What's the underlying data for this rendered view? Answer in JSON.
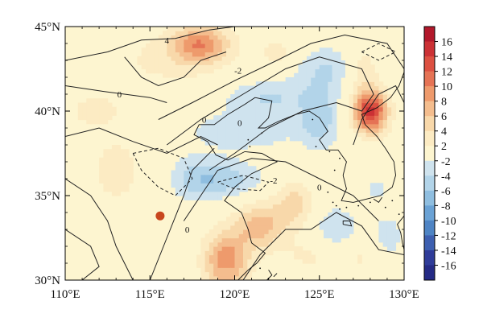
{
  "map": {
    "lon_range": [
      110,
      130
    ],
    "lat_range": [
      30,
      45
    ],
    "x_ticks": [
      {
        "value": 110,
        "label": "110°E"
      },
      {
        "value": 115,
        "label": "115°E"
      },
      {
        "value": 120,
        "label": "120°E"
      },
      {
        "value": 125,
        "label": "125°E"
      },
      {
        "value": 130,
        "label": "130°E"
      }
    ],
    "y_ticks": [
      {
        "value": 30,
        "label": "30°N"
      },
      {
        "value": 35,
        "label": "35°N"
      },
      {
        "value": 40,
        "label": "40°N"
      },
      {
        "value": 45,
        "label": "45°N"
      }
    ],
    "contour_labels": [
      {
        "text": "4",
        "lon": 116.0,
        "lat": 44.2
      },
      {
        "text": "-2",
        "lon": 120.2,
        "lat": 42.4
      },
      {
        "text": "0",
        "lon": 113.2,
        "lat": 41.0
      },
      {
        "text": "0",
        "lon": 118.2,
        "lat": 39.5
      },
      {
        "text": "0",
        "lon": 120.3,
        "lat": 39.3
      },
      {
        "text": "-2",
        "lon": 122.3,
        "lat": 35.9
      },
      {
        "text": "0",
        "lon": 125.0,
        "lat": 35.5
      },
      {
        "text": "0",
        "lon": 117.2,
        "lat": 33.0
      }
    ],
    "marker": {
      "lon": 115.6,
      "lat": 33.8,
      "color": "#c8461d"
    },
    "colors": {
      "land": "#fdf5d0",
      "coast": "#111111",
      "contour": "#222222"
    }
  },
  "chart_data": {
    "type": "heatmap",
    "title": "",
    "xlabel": "",
    "ylabel": "",
    "xlim": [
      110,
      130
    ],
    "ylim": [
      30,
      45
    ],
    "colorbar": {
      "levels": [
        -18,
        -16,
        -14,
        -12,
        -10,
        -8,
        -6,
        -4,
        -2,
        2,
        4,
        6,
        8,
        10,
        12,
        14,
        16,
        18
      ],
      "labels": [
        "16",
        "14",
        "12",
        "10",
        "8",
        "6",
        "4",
        "2",
        "-2",
        "-4",
        "-6",
        "-8",
        "-10",
        "-12",
        "-14",
        "-16"
      ],
      "label_values": [
        16,
        14,
        12,
        10,
        8,
        6,
        4,
        2,
        -2,
        -4,
        -6,
        -8,
        -10,
        -12,
        -14,
        -16
      ],
      "colors_top_to_bottom": [
        "#b2182b",
        "#cb3135",
        "#dc5041",
        "#e57355",
        "#ee9a6c",
        "#f4bd8e",
        "#f8d8aa",
        "#fcebc3",
        "#fdf5d0",
        "#cfe3ee",
        "#b2d4e9",
        "#8fbee0",
        "#6aa2d5",
        "#4e84c4",
        "#3d5fb0",
        "#2f3c99",
        "#242a85"
      ]
    },
    "anomaly_centers": [
      {
        "lon": 118.0,
        "lat": 44.0,
        "value": 9,
        "sx": 1.2,
        "sy": 0.8
      },
      {
        "lon": 116.0,
        "lat": 43.0,
        "value": 2.5,
        "sx": 2.5,
        "sy": 1.2
      },
      {
        "lon": 122.5,
        "lat": 43.5,
        "value": 3,
        "sx": 0.8,
        "sy": 0.6
      },
      {
        "lon": 111.8,
        "lat": 40.0,
        "value": 3,
        "sx": 1.2,
        "sy": 0.8
      },
      {
        "lon": 113.0,
        "lat": 36.5,
        "value": 4,
        "sx": 0.9,
        "sy": 1.2
      },
      {
        "lon": 115.0,
        "lat": 32.5,
        "value": 2,
        "sx": 1.5,
        "sy": 1.0
      },
      {
        "lon": 119.5,
        "lat": 31.0,
        "value": 10,
        "sx": 0.9,
        "sy": 1.3
      },
      {
        "lon": 121.5,
        "lat": 33.2,
        "value": 7,
        "sx": 1.0,
        "sy": 1.0
      },
      {
        "lon": 123.5,
        "lat": 34.5,
        "value": 5,
        "sx": 0.8,
        "sy": 1.0
      },
      {
        "lon": 124.5,
        "lat": 31.5,
        "value": 2.5,
        "sx": 1.2,
        "sy": 0.8
      },
      {
        "lon": 127.5,
        "lat": 31.5,
        "value": 2.5,
        "sx": 1.0,
        "sy": 0.9
      },
      {
        "lon": 128.0,
        "lat": 40.0,
        "value": 15,
        "sx": 0.7,
        "sy": 0.9
      },
      {
        "lon": 127.5,
        "lat": 42.5,
        "value": 4,
        "sx": 0.7,
        "sy": 1.0
      },
      {
        "lon": 129.5,
        "lat": 37.0,
        "value": 2,
        "sx": 0.7,
        "sy": 1.0
      },
      {
        "lon": 125.5,
        "lat": 42.5,
        "value": -4,
        "sx": 1.4,
        "sy": 1.0
      },
      {
        "lon": 122.0,
        "lat": 40.8,
        "value": -4,
        "sx": 2.0,
        "sy": 0.8
      },
      {
        "lon": 120.5,
        "lat": 38.8,
        "value": -3.5,
        "sx": 2.5,
        "sy": 0.8
      },
      {
        "lon": 119.5,
        "lat": 36.0,
        "value": -5,
        "sx": 1.5,
        "sy": 0.8
      },
      {
        "lon": 117.5,
        "lat": 36.0,
        "value": -3.5,
        "sx": 1.0,
        "sy": 1.0
      },
      {
        "lon": 125.0,
        "lat": 39.5,
        "value": -5,
        "sx": 0.8,
        "sy": 1.2
      },
      {
        "lon": 126.0,
        "lat": 33.0,
        "value": -4,
        "sx": 1.0,
        "sy": 1.0
      },
      {
        "lon": 129.0,
        "lat": 32.5,
        "value": -3.5,
        "sx": 0.7,
        "sy": 1.0
      },
      {
        "lon": 128.5,
        "lat": 35.5,
        "value": -2.5,
        "sx": 0.8,
        "sy": 0.8
      },
      {
        "lon": 119.5,
        "lat": 30.5,
        "value": -2,
        "sx": 0.5,
        "sy": 0.4
      }
    ],
    "contours": [
      {
        "value": -2,
        "style": "solid",
        "points": [
          [
            116.0,
            38.0
          ],
          [
            118.0,
            39.5
          ],
          [
            120.5,
            41.0
          ],
          [
            123.0,
            42.5
          ],
          [
            125.0,
            43.2
          ],
          [
            127.5,
            42.5
          ],
          [
            128.2,
            41.0
          ],
          [
            127.5,
            40.0
          ],
          [
            126.0,
            40.5
          ],
          [
            124.0,
            40.0
          ],
          [
            122.0,
            39.0
          ],
          [
            120.0,
            37.5
          ],
          [
            118.5,
            36.5
          ]
        ]
      },
      {
        "value": 0,
        "style": "solid",
        "points": [
          [
            115.5,
            39.5
          ],
          [
            117.5,
            40.5
          ],
          [
            120.0,
            41.8
          ],
          [
            122.5,
            43.0
          ],
          [
            124.5,
            44.0
          ],
          [
            126.5,
            44.5
          ],
          [
            129.0,
            44.0
          ],
          [
            130.0,
            42.5
          ]
        ]
      },
      {
        "value": 0,
        "style": "solid",
        "points": [
          [
            110.0,
            41.5
          ],
          [
            112.0,
            41.2
          ],
          [
            113.5,
            41.0
          ],
          [
            115.0,
            40.8
          ],
          [
            116.0,
            40.5
          ]
        ]
      },
      {
        "value": 4,
        "style": "solid",
        "points": [
          [
            110.0,
            43.0
          ],
          [
            112.5,
            43.5
          ],
          [
            114.5,
            44.2
          ],
          [
            116.5,
            44.3
          ],
          [
            118.5,
            44.8
          ],
          [
            120.0,
            45.0
          ]
        ]
      },
      {
        "value": 0,
        "style": "solid",
        "points": [
          [
            110.0,
            38.5
          ],
          [
            112.0,
            39.0
          ],
          [
            114.0,
            38.2
          ],
          [
            116.0,
            37.5
          ],
          [
            118.0,
            38.5
          ],
          [
            119.0,
            38.0
          ]
        ]
      },
      {
        "value": 0,
        "style": "solid",
        "points": [
          [
            117.0,
            33.5
          ],
          [
            118.0,
            35.0
          ],
          [
            119.0,
            36.5
          ],
          [
            121.0,
            37.2
          ],
          [
            123.0,
            37.0
          ],
          [
            125.0,
            36.0
          ],
          [
            127.0,
            35.0
          ],
          [
            128.5,
            33.5
          ]
        ]
      },
      {
        "value": 0,
        "style": "solid",
        "points": [
          [
            115.0,
            30.0
          ],
          [
            116.0,
            32.5
          ],
          [
            117.0,
            35.0
          ],
          [
            117.5,
            36.5
          ],
          [
            118.8,
            37.8
          ]
        ]
      },
      {
        "value": -2,
        "style": "dashed",
        "points": [
          [
            114.0,
            37.5
          ],
          [
            115.5,
            37.8
          ],
          [
            117.0,
            37.2
          ],
          [
            117.5,
            36.0
          ],
          [
            116.5,
            35.0
          ],
          [
            115.5,
            35.5
          ],
          [
            114.5,
            36.5
          ],
          [
            114.0,
            37.5
          ]
        ]
      },
      {
        "value": -2,
        "style": "dashed",
        "points": [
          [
            119.0,
            35.8
          ],
          [
            120.5,
            36.2
          ],
          [
            122.0,
            35.8
          ],
          [
            121.5,
            35.3
          ],
          [
            120.0,
            35.4
          ],
          [
            119.0,
            35.8
          ]
        ]
      },
      {
        "value": -2,
        "style": "dashed",
        "points": [
          [
            127.5,
            43.5
          ],
          [
            128.5,
            44.0
          ],
          [
            129.5,
            43.5
          ],
          [
            128.5,
            43.0
          ],
          [
            127.5,
            43.5
          ]
        ]
      },
      {
        "value": 2,
        "style": "solid",
        "points": [
          [
            110.0,
            36.0
          ],
          [
            111.5,
            35.0
          ],
          [
            112.5,
            33.5
          ],
          [
            113.0,
            32.0
          ],
          [
            114.0,
            30.0
          ]
        ]
      },
      {
        "value": 2,
        "style": "solid",
        "points": [
          [
            110.0,
            33.0
          ],
          [
            111.5,
            32.0
          ],
          [
            112.0,
            30.8
          ],
          [
            111.0,
            30.0
          ]
        ]
      },
      {
        "value": 2,
        "style": "solid",
        "points": [
          [
            120.5,
            30.0
          ],
          [
            121.5,
            31.5
          ],
          [
            123.0,
            33.0
          ],
          [
            124.5,
            33.0
          ],
          [
            126.0,
            34.0
          ],
          [
            127.5,
            33.2
          ],
          [
            128.5,
            31.8
          ],
          [
            130.0,
            31.5
          ]
        ]
      },
      {
        "value": 2,
        "style": "solid",
        "points": [
          [
            127.0,
            38.0
          ],
          [
            127.5,
            39.5
          ],
          [
            128.5,
            41.0
          ],
          [
            129.5,
            41.5
          ],
          [
            130.0,
            40.5
          ]
        ]
      },
      {
        "value": 2,
        "style": "solid",
        "points": [
          [
            113.5,
            43.2
          ],
          [
            114.5,
            42.0
          ],
          [
            115.5,
            41.5
          ],
          [
            117.0,
            42.0
          ],
          [
            118.0,
            43.0
          ],
          [
            119.5,
            43.5
          ]
        ]
      }
    ]
  }
}
